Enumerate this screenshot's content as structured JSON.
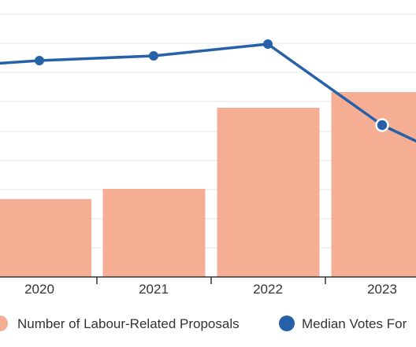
{
  "chart_data": {
    "type": "bar",
    "categories": [
      "2020",
      "2021",
      "2022",
      "2023"
    ],
    "series": [
      {
        "name": "Number of Labour-Related Proposals",
        "type": "bar",
        "color": "#f5ae94",
        "values": [
          19,
          22.5,
          57,
          72
        ]
      },
      {
        "name": "Median Votes For",
        "name_visible": "Median Votes For",
        "type": "line",
        "color": "#2560a8",
        "values": [
          74,
          76,
          81,
          29
        ]
      }
    ],
    "categories_partial_left": "2019",
    "bar_partial_left": 18,
    "line_partial_left": 71,
    "line_partial_right": 15,
    "ylim": [
      -35,
      110
    ],
    "grid": true,
    "legend_position": "bottom",
    "axis_color": "#333333",
    "grid_color": "#e6e6e6",
    "line_point_fill_highlight": "#ffffff"
  },
  "legend": {
    "items": [
      {
        "label": "Number of Labour-Related Proposals",
        "marker": "circle",
        "color": "#f5ae94"
      },
      {
        "label": "Median Votes For",
        "marker": "circle",
        "color": "#2560a8"
      }
    ]
  }
}
